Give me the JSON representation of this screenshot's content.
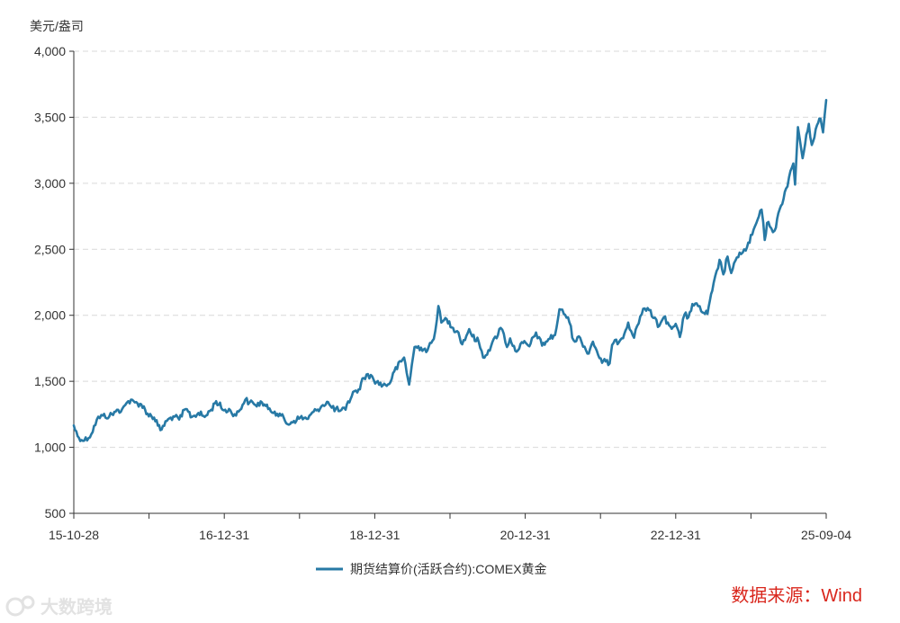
{
  "chart_data": {
    "type": "line",
    "title": "",
    "unit_label": "美元/盎司",
    "xlabel": "",
    "ylabel": "",
    "ylim": [
      500,
      4000
    ],
    "y_ticks": [
      500,
      1000,
      1500,
      2000,
      2500,
      3000,
      3500,
      4000
    ],
    "y_tick_labels": [
      "500",
      "1,000",
      "1,500",
      "2,000",
      "2,500",
      "3,000",
      "3,500",
      "4,000"
    ],
    "x_tick_labels": [
      "15-10-28",
      "16-12-31",
      "18-12-31",
      "20-12-31",
      "22-12-31",
      "25-09-04"
    ],
    "x_range": [
      "2015-10-28",
      "2025-09-04"
    ],
    "grid": "horizontal-dashed",
    "legend_position": "bottom-center",
    "series": [
      {
        "name": "期货结算价(活跃合约):COMEX黄金",
        "color": "#2779a5",
        "points": [
          [
            "2015-10-28",
            1165
          ],
          [
            "2015-11-15",
            1085
          ],
          [
            "2015-12-17",
            1050
          ],
          [
            "2016-01-20",
            1100
          ],
          [
            "2016-02-15",
            1210
          ],
          [
            "2016-03-15",
            1240
          ],
          [
            "2016-04-15",
            1235
          ],
          [
            "2016-05-15",
            1270
          ],
          [
            "2016-06-15",
            1290
          ],
          [
            "2016-06-30",
            1320
          ],
          [
            "2016-07-15",
            1350
          ],
          [
            "2016-08-15",
            1340
          ],
          [
            "2016-09-15",
            1325
          ],
          [
            "2016-10-15",
            1255
          ],
          [
            "2016-11-15",
            1225
          ],
          [
            "2016-12-15",
            1130
          ],
          [
            "2017-01-15",
            1200
          ],
          [
            "2017-02-15",
            1235
          ],
          [
            "2017-03-15",
            1210
          ],
          [
            "2017-04-15",
            1290
          ],
          [
            "2017-05-15",
            1230
          ],
          [
            "2017-06-15",
            1260
          ],
          [
            "2017-07-15",
            1230
          ],
          [
            "2017-08-15",
            1285
          ],
          [
            "2017-09-08",
            1350
          ],
          [
            "2017-10-15",
            1280
          ],
          [
            "2017-11-15",
            1280
          ],
          [
            "2017-12-12",
            1240
          ],
          [
            "2018-01-25",
            1360
          ],
          [
            "2018-02-15",
            1340
          ],
          [
            "2018-03-15",
            1320
          ],
          [
            "2018-04-15",
            1340
          ],
          [
            "2018-05-15",
            1290
          ],
          [
            "2018-06-15",
            1270
          ],
          [
            "2018-07-15",
            1240
          ],
          [
            "2018-08-16",
            1175
          ],
          [
            "2018-09-15",
            1200
          ],
          [
            "2018-10-15",
            1225
          ],
          [
            "2018-11-15",
            1215
          ],
          [
            "2018-12-31",
            1280
          ],
          [
            "2019-01-31",
            1320
          ],
          [
            "2019-02-20",
            1345
          ],
          [
            "2019-03-15",
            1300
          ],
          [
            "2019-04-23",
            1275
          ],
          [
            "2019-05-20",
            1285
          ],
          [
            "2019-06-25",
            1420
          ],
          [
            "2019-07-15",
            1415
          ],
          [
            "2019-08-15",
            1525
          ],
          [
            "2019-09-04",
            1555
          ],
          [
            "2019-10-15",
            1495
          ],
          [
            "2019-11-15",
            1470
          ],
          [
            "2019-12-15",
            1480
          ],
          [
            "2020-01-08",
            1575
          ],
          [
            "2020-02-24",
            1680
          ],
          [
            "2020-03-19",
            1475
          ],
          [
            "2020-04-14",
            1760
          ],
          [
            "2020-05-15",
            1755
          ],
          [
            "2020-06-15",
            1735
          ],
          [
            "2020-07-15",
            1820
          ],
          [
            "2020-08-06",
            2070
          ],
          [
            "2020-08-20",
            1945
          ],
          [
            "2020-09-15",
            1970
          ],
          [
            "2020-10-15",
            1905
          ],
          [
            "2020-11-10",
            1870
          ],
          [
            "2020-11-28",
            1780
          ],
          [
            "2020-12-31",
            1895
          ],
          [
            "2021-01-15",
            1840
          ],
          [
            "2021-02-15",
            1800
          ],
          [
            "2021-03-08",
            1680
          ],
          [
            "2021-04-15",
            1765
          ],
          [
            "2021-05-31",
            1905
          ],
          [
            "2021-06-15",
            1860
          ],
          [
            "2021-06-30",
            1760
          ],
          [
            "2021-07-15",
            1825
          ],
          [
            "2021-08-09",
            1730
          ],
          [
            "2021-09-15",
            1790
          ],
          [
            "2021-10-15",
            1765
          ],
          [
            "2021-11-16",
            1870
          ],
          [
            "2021-12-15",
            1770
          ],
          [
            "2022-01-15",
            1820
          ],
          [
            "2022-02-15",
            1850
          ],
          [
            "2022-03-08",
            2045
          ],
          [
            "2022-04-18",
            1985
          ],
          [
            "2022-05-15",
            1810
          ],
          [
            "2022-06-15",
            1830
          ],
          [
            "2022-07-20",
            1710
          ],
          [
            "2022-08-15",
            1800
          ],
          [
            "2022-09-28",
            1640
          ],
          [
            "2022-10-15",
            1650
          ],
          [
            "2022-11-03",
            1635
          ],
          [
            "2022-11-15",
            1775
          ],
          [
            "2022-12-31",
            1825
          ],
          [
            "2023-01-31",
            1945
          ],
          [
            "2023-02-28",
            1830
          ],
          [
            "2023-03-15",
            1920
          ],
          [
            "2023-04-13",
            2050
          ],
          [
            "2023-05-04",
            2055
          ],
          [
            "2023-05-31",
            1980
          ],
          [
            "2023-06-29",
            1920
          ],
          [
            "2023-07-20",
            1985
          ],
          [
            "2023-08-21",
            1915
          ],
          [
            "2023-09-15",
            1935
          ],
          [
            "2023-10-05",
            1835
          ],
          [
            "2023-10-27",
            2005
          ],
          [
            "2023-11-15",
            1985
          ],
          [
            "2023-12-04",
            2085
          ],
          [
            "2023-12-31",
            2070
          ],
          [
            "2024-01-15",
            2030
          ],
          [
            "2024-02-14",
            2010
          ],
          [
            "2024-03-08",
            2185
          ],
          [
            "2024-04-12",
            2420
          ],
          [
            "2024-04-30",
            2310
          ],
          [
            "2024-05-20",
            2445
          ],
          [
            "2024-06-07",
            2320
          ],
          [
            "2024-07-17",
            2475
          ],
          [
            "2024-08-15",
            2490
          ],
          [
            "2024-09-15",
            2610
          ],
          [
            "2024-10-30",
            2800
          ],
          [
            "2024-11-14",
            2570
          ],
          [
            "2024-11-25",
            2700
          ],
          [
            "2024-12-15",
            2660
          ],
          [
            "2024-12-31",
            2640
          ],
          [
            "2025-01-31",
            2830
          ],
          [
            "2025-02-24",
            2960
          ],
          [
            "2025-03-31",
            3150
          ],
          [
            "2025-04-08",
            2990
          ],
          [
            "2025-04-22",
            3425
          ],
          [
            "2025-05-14",
            3190
          ],
          [
            "2025-06-13",
            3450
          ],
          [
            "2025-06-27",
            3290
          ],
          [
            "2025-07-22",
            3440
          ],
          [
            "2025-08-08",
            3490
          ],
          [
            "2025-08-20",
            3385
          ],
          [
            "2025-09-04",
            3630
          ]
        ]
      }
    ],
    "source": "数据来源：Wind",
    "watermark": "大数跨境"
  }
}
